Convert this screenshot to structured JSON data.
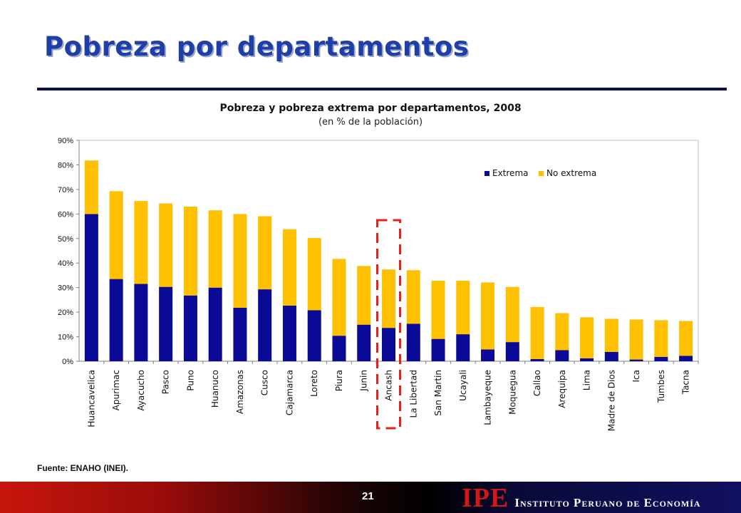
{
  "slide": {
    "title": "Pobreza por departamentos"
  },
  "source": "Fuente: ENAHO (INEI).",
  "footer": {
    "page_number": "21",
    "logo_mark": "IPE",
    "logo_text": "Instituto Peruano de Economía"
  },
  "colors": {
    "extrema": "#0a0a96",
    "no_extrema": "#ffc000",
    "highlight": "#e8201c",
    "title": "#1f3fa8"
  },
  "chart_data": {
    "type": "bar",
    "stacked": true,
    "title": "Pobreza y pobreza extrema por departamentos, 2008",
    "subtitle": "(en % de la población)",
    "ylim": [
      0,
      90
    ],
    "yticks": [
      "0%",
      "10%",
      "20%",
      "30%",
      "40%",
      "50%",
      "60%",
      "70%",
      "80%",
      "90%"
    ],
    "legend_position": "top-right",
    "highlighted_category": "Ancash",
    "categories": [
      "Huancavelica",
      "Apurimac",
      "Ayacucho",
      "Pasco",
      "Puno",
      "Huanuco",
      "Amazonas",
      "Cusco",
      "Cajamarca",
      "Loreto",
      "Piura",
      "Junin",
      "Ancash",
      "La Libertad",
      "San Martin",
      "Ucayali",
      "Lambayeque",
      "Moquegua",
      "Callao",
      "Arequipa",
      "Lima",
      "Madre de Dios",
      "Ica",
      "Tumbes",
      "Tacna"
    ],
    "series": [
      {
        "name": "Extrema",
        "values": [
          60.0,
          33.5,
          31.5,
          30.3,
          26.8,
          30.0,
          21.8,
          29.3,
          22.7,
          20.8,
          10.4,
          14.9,
          13.6,
          15.3,
          9.1,
          11.0,
          4.8,
          7.8,
          0.9,
          4.5,
          1.2,
          3.8,
          0.7,
          1.8,
          2.2
        ]
      },
      {
        "name": "No extrema",
        "values": [
          21.8,
          35.8,
          33.8,
          34.0,
          36.2,
          31.5,
          38.2,
          29.8,
          31.1,
          29.4,
          31.3,
          23.9,
          23.8,
          21.8,
          23.7,
          21.8,
          27.3,
          22.5,
          21.2,
          15.1,
          16.7,
          13.5,
          16.3,
          14.9,
          14.2
        ]
      }
    ]
  }
}
